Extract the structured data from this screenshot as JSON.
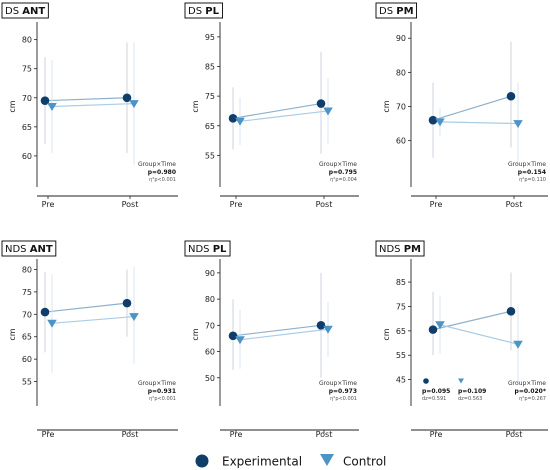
{
  "colors": {
    "experimental": "#0f3e6b",
    "control": "#4c93c6",
    "exp_line": "#8fb0cc",
    "ctl_line": "#a9cde6"
  },
  "legend": {
    "experimental": "Experimental",
    "control": "Control"
  },
  "chart_data": [
    {
      "type": "line",
      "title_prefix": "DS",
      "title_bold": "ANT",
      "ylabel": "cm",
      "categories": [
        "Pre",
        "Post"
      ],
      "yticks": [
        60,
        65,
        70,
        75,
        80
      ],
      "ylim": [
        55,
        82
      ],
      "series": [
        {
          "name": "Experimental",
          "values": [
            69.5,
            70.0
          ],
          "err_low": [
            62,
            60.5
          ],
          "err_high": [
            77,
            79.5
          ]
        },
        {
          "name": "Control",
          "values": [
            68.5,
            69.0
          ],
          "err_low": [
            60.5,
            58.5
          ],
          "err_high": [
            76.5,
            79.5
          ]
        }
      ],
      "stats": {
        "label": "Group×Time",
        "p": "p=0.980",
        "eta": "η²p<0.001"
      }
    },
    {
      "type": "line",
      "title_prefix": "DS",
      "title_bold": "PL",
      "ylabel": "cm",
      "categories": [
        "Pre",
        "Post"
      ],
      "yticks": [
        55,
        65,
        75,
        85,
        95
      ],
      "ylim": [
        45,
        98
      ],
      "series": [
        {
          "name": "Experimental",
          "values": [
            67.5,
            72.5
          ],
          "err_low": [
            57,
            55.5
          ],
          "err_high": [
            78,
            90
          ]
        },
        {
          "name": "Control",
          "values": [
            66.5,
            70.0
          ],
          "err_low": [
            58.5,
            59
          ],
          "err_high": [
            74.5,
            81
          ]
        }
      ],
      "stats": {
        "label": "Group×Time",
        "p": "p=0.795",
        "eta": "η²p=0.004"
      }
    },
    {
      "type": "line",
      "title_prefix": "DS",
      "title_bold": "PM",
      "ylabel": "cm",
      "categories": [
        "Pre",
        "Post"
      ],
      "yticks": [
        60,
        70,
        80,
        90
      ],
      "ylim": [
        47,
        93
      ],
      "series": [
        {
          "name": "Experimental",
          "values": [
            66.0,
            73.0
          ],
          "err_low": [
            55,
            58
          ],
          "err_high": [
            77,
            89
          ]
        },
        {
          "name": "Control",
          "values": [
            65.5,
            65.0
          ],
          "err_low": [
            61.5,
            53
          ],
          "err_high": [
            69.5,
            77
          ]
        }
      ],
      "stats": {
        "label": "Group×Time",
        "p": "p=0.154",
        "eta": "η²p=0.110"
      }
    },
    {
      "type": "line",
      "title_prefix": "NDS",
      "title_bold": "ANT",
      "ylabel": "cm",
      "categories": [
        "Pre",
        "Post"
      ],
      "yticks": [
        55,
        60,
        65,
        70,
        75,
        80
      ],
      "ylim": [
        50,
        81
      ],
      "series": [
        {
          "name": "Experimental",
          "values": [
            70.5,
            72.5
          ],
          "err_low": [
            61.5,
            65
          ],
          "err_high": [
            79.5,
            80
          ]
        },
        {
          "name": "Control",
          "values": [
            68.0,
            69.5
          ],
          "err_low": [
            57,
            59
          ],
          "err_high": [
            79,
            80.5
          ]
        }
      ],
      "stats": {
        "label": "Group×Time",
        "p": "p=0.931",
        "eta": "η²p<0.001"
      }
    },
    {
      "type": "line",
      "title_prefix": "NDS",
      "title_bold": "PL",
      "ylabel": "cm",
      "categories": [
        "Pre",
        "Post"
      ],
      "yticks": [
        50,
        60,
        70,
        80,
        90
      ],
      "ylim": [
        40,
        93
      ],
      "series": [
        {
          "name": "Experimental",
          "values": [
            66.0,
            70.0
          ],
          "err_low": [
            53,
            50
          ],
          "err_high": [
            80,
            90
          ]
        },
        {
          "name": "Control",
          "values": [
            64.5,
            68.5
          ],
          "err_low": [
            53.5,
            58
          ],
          "err_high": [
            76,
            79
          ]
        }
      ],
      "stats": {
        "label": "Group×Time",
        "p": "p=0.973",
        "eta": "η²p<0.001"
      }
    },
    {
      "type": "line",
      "title_prefix": "NDS",
      "title_bold": "PM",
      "ylabel": "cm",
      "categories": [
        "Pre",
        "Post"
      ],
      "yticks": [
        45,
        55,
        65,
        75,
        85
      ],
      "ylim": [
        35,
        92
      ],
      "series": [
        {
          "name": "Experimental",
          "values": [
            65.5,
            73.0
          ],
          "err_low": [
            55,
            57
          ],
          "err_high": [
            81,
            89
          ]
        },
        {
          "name": "Control",
          "values": [
            67.5,
            59.5
          ],
          "err_low": [
            55.5,
            44
          ],
          "err_high": [
            79.5,
            75
          ]
        }
      ],
      "stats": {
        "label": "Group×Time",
        "p": "p=0.020*",
        "eta": "η²p=0.267"
      },
      "extra_stats": [
        {
          "group": "Experimental",
          "p": "p=0.095",
          "d": "dz=0.591"
        },
        {
          "group": "Control",
          "p": "p=0.109",
          "d": "dz=0.563"
        }
      ]
    }
  ]
}
